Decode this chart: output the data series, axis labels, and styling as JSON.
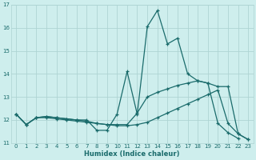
{
  "xlabel": "Humidex (Indice chaleur)",
  "background_color": "#ceeeed",
  "grid_color": "#aed4d3",
  "line_color": "#1a6b6b",
  "xlim": [
    -0.5,
    23.5
  ],
  "ylim": [
    11,
    17
  ],
  "yticks": [
    11,
    12,
    13,
    14,
    15,
    16,
    17
  ],
  "xticks": [
    0,
    1,
    2,
    3,
    4,
    5,
    6,
    7,
    8,
    9,
    10,
    11,
    12,
    13,
    14,
    15,
    16,
    17,
    18,
    19,
    20,
    21,
    22,
    23
  ],
  "line1_x": [
    0,
    1,
    2,
    3,
    4,
    5,
    6,
    7,
    8,
    9,
    10,
    11,
    12,
    13,
    14,
    15,
    16,
    17,
    18,
    19,
    20,
    21,
    22,
    23
  ],
  "line1_y": [
    12.25,
    11.8,
    12.1,
    12.15,
    12.1,
    12.05,
    12.0,
    12.0,
    11.55,
    11.55,
    12.25,
    14.1,
    12.25,
    16.05,
    16.75,
    15.3,
    15.55,
    14.0,
    13.7,
    13.6,
    11.85,
    11.45,
    11.2,
    null
  ],
  "line2_x": [
    0,
    1,
    2,
    3,
    4,
    5,
    6,
    7,
    8,
    9,
    10,
    11,
    12,
    13,
    14,
    15,
    16,
    17,
    18,
    19,
    20,
    21,
    22,
    23
  ],
  "line2_y": [
    12.25,
    11.8,
    12.1,
    12.15,
    12.1,
    12.05,
    12.0,
    11.95,
    11.85,
    11.8,
    11.8,
    11.8,
    12.3,
    13.0,
    13.2,
    13.35,
    13.5,
    13.6,
    13.7,
    13.6,
    13.45,
    13.45,
    11.4,
    11.15
  ],
  "line3_x": [
    0,
    1,
    2,
    3,
    4,
    5,
    6,
    7,
    8,
    9,
    10,
    11,
    12,
    13,
    14,
    15,
    16,
    17,
    18,
    19,
    20,
    21,
    22,
    23
  ],
  "line3_y": [
    12.25,
    11.8,
    12.1,
    12.1,
    12.05,
    12.0,
    11.95,
    11.9,
    11.85,
    11.8,
    11.75,
    11.75,
    11.8,
    11.9,
    12.1,
    12.3,
    12.5,
    12.7,
    12.9,
    13.1,
    13.3,
    11.85,
    11.4,
    11.15
  ]
}
